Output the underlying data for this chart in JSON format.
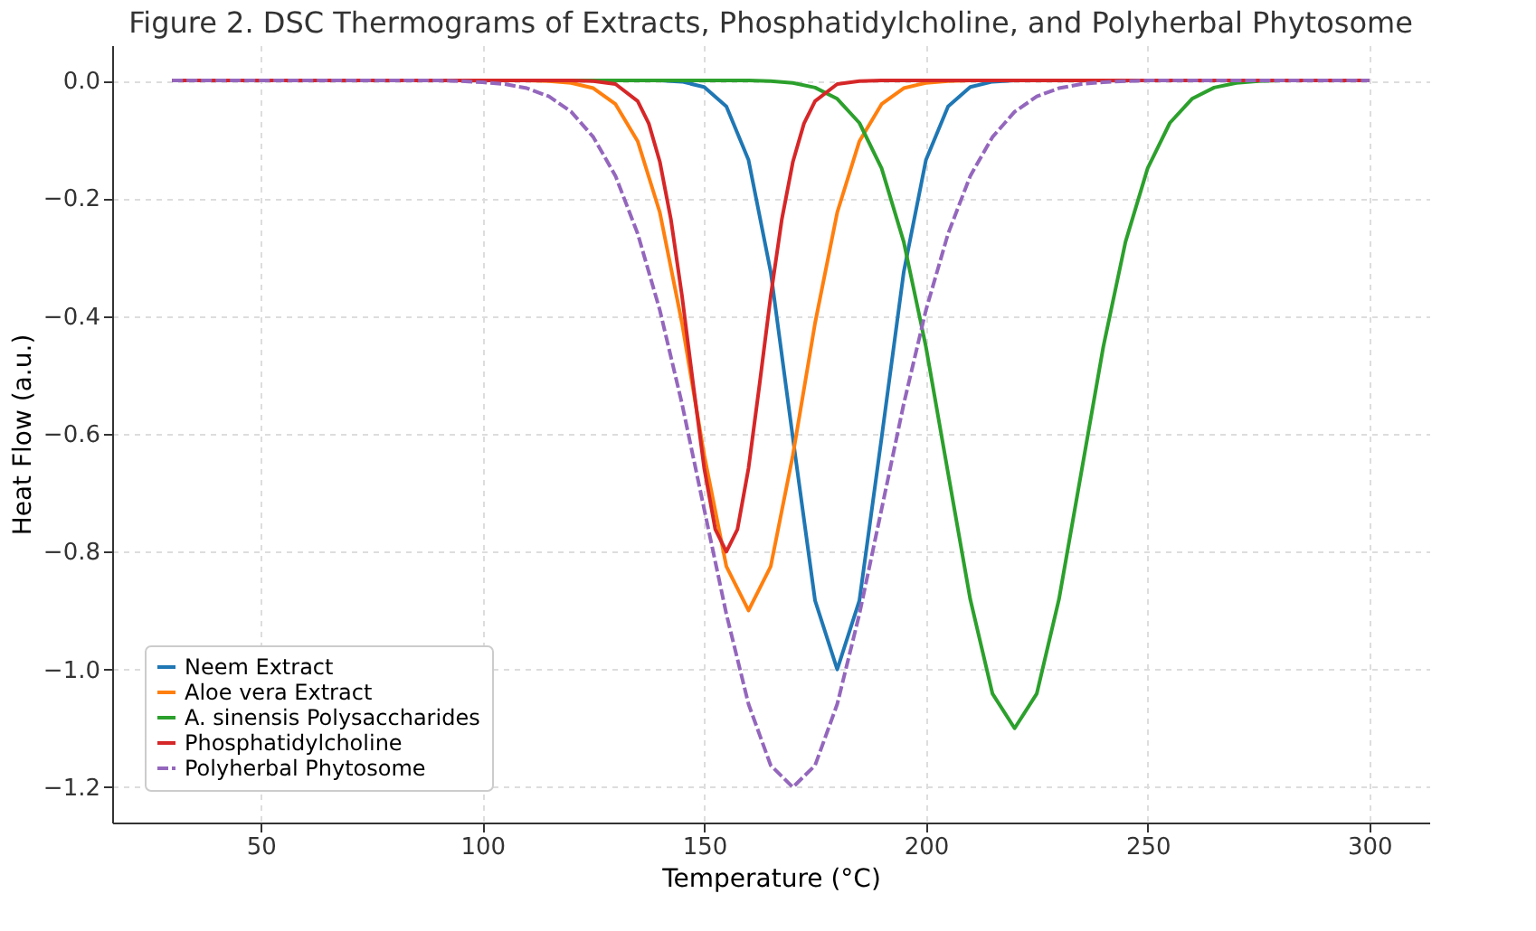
{
  "chart_data": {
    "type": "line",
    "title": "Figure 2. DSC Thermograms of Extracts, Phosphatidylcholine, and Polyherbal Phytosome",
    "xlabel": "Temperature (°C)",
    "ylabel": "Heat Flow (a.u.)",
    "xlim": [
      16.5,
      313.5
    ],
    "ylim": [
      -1.26,
      0.06
    ],
    "xticks": [
      50,
      100,
      150,
      200,
      250,
      300
    ],
    "yticks": [
      {
        "value": 0,
        "label": "0.0"
      },
      {
        "value": -0.2,
        "label": "−0.2"
      },
      {
        "value": -0.4,
        "label": "−0.4"
      },
      {
        "value": -0.6,
        "label": "−0.6"
      },
      {
        "value": -0.8,
        "label": "−0.8"
      },
      {
        "value": -1.0,
        "label": "−1.0"
      },
      {
        "value": -1.2,
        "label": "−1.2"
      }
    ],
    "grid": true,
    "legend": "bottom left",
    "marker": "none",
    "line_style": "solid",
    "series": [
      {
        "name": "Neem Extract",
        "color": "#1f77b4",
        "x": [
          30,
          140,
          145,
          150,
          155,
          160,
          165,
          170,
          175,
          180,
          185,
          190,
          195,
          200,
          205,
          210,
          215,
          220,
          300
        ],
        "values": [
          0,
          0,
          -0.002,
          -0.011,
          -0.044,
          -0.135,
          -0.325,
          -0.607,
          -0.883,
          -1.0,
          -0.883,
          -0.607,
          -0.325,
          -0.135,
          -0.044,
          -0.011,
          -0.002,
          0,
          0
        ]
      },
      {
        "name": "Aloe vera Extract",
        "color": "#ff7f0e",
        "x": [
          30,
          110,
          115,
          120,
          125,
          130,
          135,
          140,
          145,
          150,
          155,
          160,
          165,
          170,
          175,
          180,
          185,
          190,
          195,
          200,
          205,
          210,
          300
        ],
        "values": [
          0,
          0,
          -0.001,
          -0.004,
          -0.013,
          -0.04,
          -0.103,
          -0.224,
          -0.412,
          -0.636,
          -0.825,
          -0.9,
          -0.825,
          -0.636,
          -0.412,
          -0.224,
          -0.103,
          -0.04,
          -0.013,
          -0.004,
          -0.001,
          0,
          0
        ]
      },
      {
        "name": "A. sinensis Polysaccharides",
        "color": "#2ca02c",
        "x": [
          30,
          160,
          165,
          170,
          175,
          180,
          185,
          190,
          195,
          200,
          205,
          210,
          215,
          220,
          225,
          230,
          235,
          240,
          245,
          250,
          255,
          260,
          265,
          270,
          275,
          280,
          300
        ],
        "values": [
          0,
          0,
          -0.001,
          -0.004,
          -0.012,
          -0.031,
          -0.072,
          -0.149,
          -0.274,
          -0.452,
          -0.667,
          -0.881,
          -1.041,
          -1.1,
          -1.041,
          -0.881,
          -0.667,
          -0.452,
          -0.274,
          -0.149,
          -0.072,
          -0.031,
          -0.012,
          -0.004,
          -0.001,
          0,
          0
        ]
      },
      {
        "name": "Phosphatidylcholine",
        "color": "#d62728",
        "x": [
          30,
          120,
          125,
          130,
          135,
          137.5,
          140,
          142.5,
          145,
          147.5,
          150,
          152.5,
          155,
          157.5,
          160,
          162.5,
          165,
          167.5,
          170,
          172.5,
          175,
          180,
          185,
          190,
          300
        ],
        "values": [
          0,
          0,
          -0.001,
          -0.006,
          -0.035,
          -0.073,
          -0.138,
          -0.236,
          -0.366,
          -0.515,
          -0.658,
          -0.762,
          -0.8,
          -0.762,
          -0.658,
          -0.515,
          -0.366,
          -0.236,
          -0.138,
          -0.073,
          -0.035,
          -0.006,
          -0.001,
          0,
          0
        ]
      },
      {
        "name": "Polyherbal Phytosome",
        "color": "#9467bd",
        "line_style": "dashed",
        "x": [
          30,
          90,
          95,
          100,
          105,
          110,
          115,
          120,
          125,
          130,
          135,
          140,
          145,
          150,
          155,
          160,
          165,
          170,
          175,
          180,
          185,
          190,
          195,
          200,
          205,
          210,
          215,
          220,
          225,
          230,
          235,
          240,
          245,
          250,
          300
        ],
        "values": [
          0,
          0,
          -0.001,
          -0.003,
          -0.006,
          -0.013,
          -0.027,
          -0.053,
          -0.096,
          -0.162,
          -0.26,
          -0.39,
          -0.549,
          -0.728,
          -0.906,
          -1.059,
          -1.163,
          -1.2,
          -1.163,
          -1.059,
          -0.906,
          -0.728,
          -0.549,
          -0.39,
          -0.26,
          -0.162,
          -0.096,
          -0.053,
          -0.027,
          -0.013,
          -0.006,
          -0.003,
          -0.001,
          0,
          0
        ]
      }
    ]
  }
}
